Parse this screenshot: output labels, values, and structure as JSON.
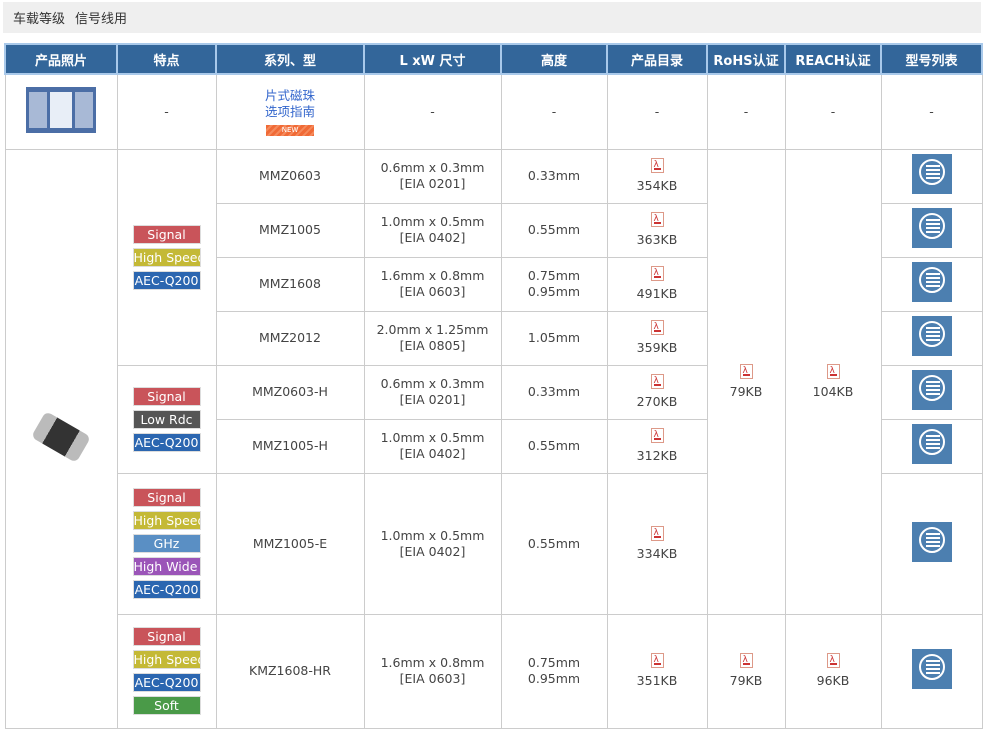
{
  "breadcrumb": {
    "items": [
      "车载等级",
      "信号线用"
    ]
  },
  "table": {
    "headers": [
      "产品照片",
      "特点",
      "系列、型",
      "L xW 尺寸",
      "高度",
      "产品目录",
      "RoHS认证",
      "REACH认证",
      "型号列表"
    ],
    "guide_row": {
      "link_line1": "片式磁珠",
      "link_line2": "选项指南",
      "badge": "NEW",
      "dash": "-"
    },
    "colors": {
      "Signal": "#c9545a",
      "High Speed": "#c4b936",
      "AEC-Q200": "#2b66b0",
      "Low Rdc": "#555555",
      "GHz": "#5a8fc4",
      "High Wide Z": "#9b55b8",
      "Soft": "#4a9a48"
    },
    "feature_groups": [
      {
        "rows": 4,
        "tags": [
          "Signal",
          "High Speed",
          "AEC-Q200"
        ]
      },
      {
        "rows": 2,
        "tags": [
          "Signal",
          "Low Rdc",
          "AEC-Q200"
        ]
      },
      {
        "rows": 1,
        "tags": [
          "Signal",
          "High Speed",
          "GHz",
          "High Wide Z",
          "AEC-Q200"
        ]
      },
      {
        "rows": 1,
        "tags": [
          "Signal",
          "High Speed",
          "AEC-Q200",
          "Soft"
        ]
      }
    ],
    "cert_groups": [
      {
        "rows": 7,
        "rohs": "79KB",
        "reach": "104KB"
      },
      {
        "rows": 1,
        "rohs": "79KB",
        "reach": "96KB"
      }
    ],
    "rows": [
      {
        "series": "MMZ0603",
        "size": "0.6mm x 0.3mm",
        "eia": "[EIA 0201]",
        "height": [
          "0.33mm"
        ],
        "catalog": "354KB"
      },
      {
        "series": "MMZ1005",
        "size": "1.0mm x 0.5mm",
        "eia": "[EIA 0402]",
        "height": [
          "0.55mm"
        ],
        "catalog": "363KB"
      },
      {
        "series": "MMZ1608",
        "size": "1.6mm x 0.8mm",
        "eia": "[EIA 0603]",
        "height": [
          "0.75mm",
          "0.95mm"
        ],
        "catalog": "491KB"
      },
      {
        "series": "MMZ2012",
        "size": "2.0mm x 1.25mm",
        "eia": "[EIA 0805]",
        "height": [
          "1.05mm"
        ],
        "catalog": "359KB"
      },
      {
        "series": "MMZ0603-H",
        "size": "0.6mm x 0.3mm",
        "eia": "[EIA 0201]",
        "height": [
          "0.33mm"
        ],
        "catalog": "270KB"
      },
      {
        "series": "MMZ1005-H",
        "size": "1.0mm x 0.5mm",
        "eia": "[EIA 0402]",
        "height": [
          "0.55mm"
        ],
        "catalog": "312KB"
      },
      {
        "series": "MMZ1005-E",
        "size": "1.0mm x 0.5mm",
        "eia": "[EIA 0402]",
        "height": [
          "0.55mm"
        ],
        "catalog": "334KB"
      },
      {
        "series": "KMZ1608-HR",
        "size": "1.6mm x 0.8mm",
        "eia": "[EIA 0603]",
        "height": [
          "0.75mm",
          "0.95mm"
        ],
        "catalog": "351KB"
      }
    ]
  }
}
